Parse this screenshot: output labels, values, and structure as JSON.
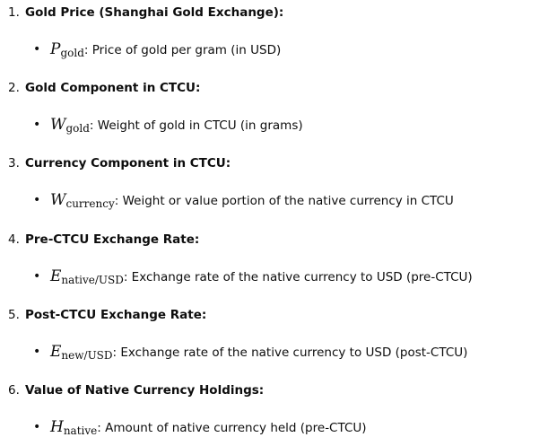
{
  "items": [
    {
      "number": "1.",
      "title": "Gold Price (Shanghai Gold Exchange):",
      "var": "P",
      "sub": "gold",
      "desc": ": Price of gold per gram (in USD)"
    },
    {
      "number": "2.",
      "title": "Gold Component in CTCU:",
      "var": "W",
      "sub": "gold",
      "desc": ": Weight of gold in CTCU (in grams)"
    },
    {
      "number": "3.",
      "title": "Currency Component in CTCU:",
      "var": "W",
      "sub": "currency",
      "desc": ": Weight or value portion of the native currency in CTCU"
    },
    {
      "number": "4.",
      "title": "Pre-CTCU Exchange Rate:",
      "var": "E",
      "sub": "native/USD",
      "desc": ": Exchange rate of the native currency to USD (pre-CTCU)"
    },
    {
      "number": "5.",
      "title": "Post-CTCU Exchange Rate:",
      "var": "E",
      "sub": "new/USD",
      "desc": ": Exchange rate of the native currency to USD (post-CTCU)"
    },
    {
      "number": "6.",
      "title": "Value of Native Currency Holdings:",
      "var": "H",
      "sub": "native",
      "desc": ": Amount of native currency held (pre-CTCU)"
    }
  ]
}
